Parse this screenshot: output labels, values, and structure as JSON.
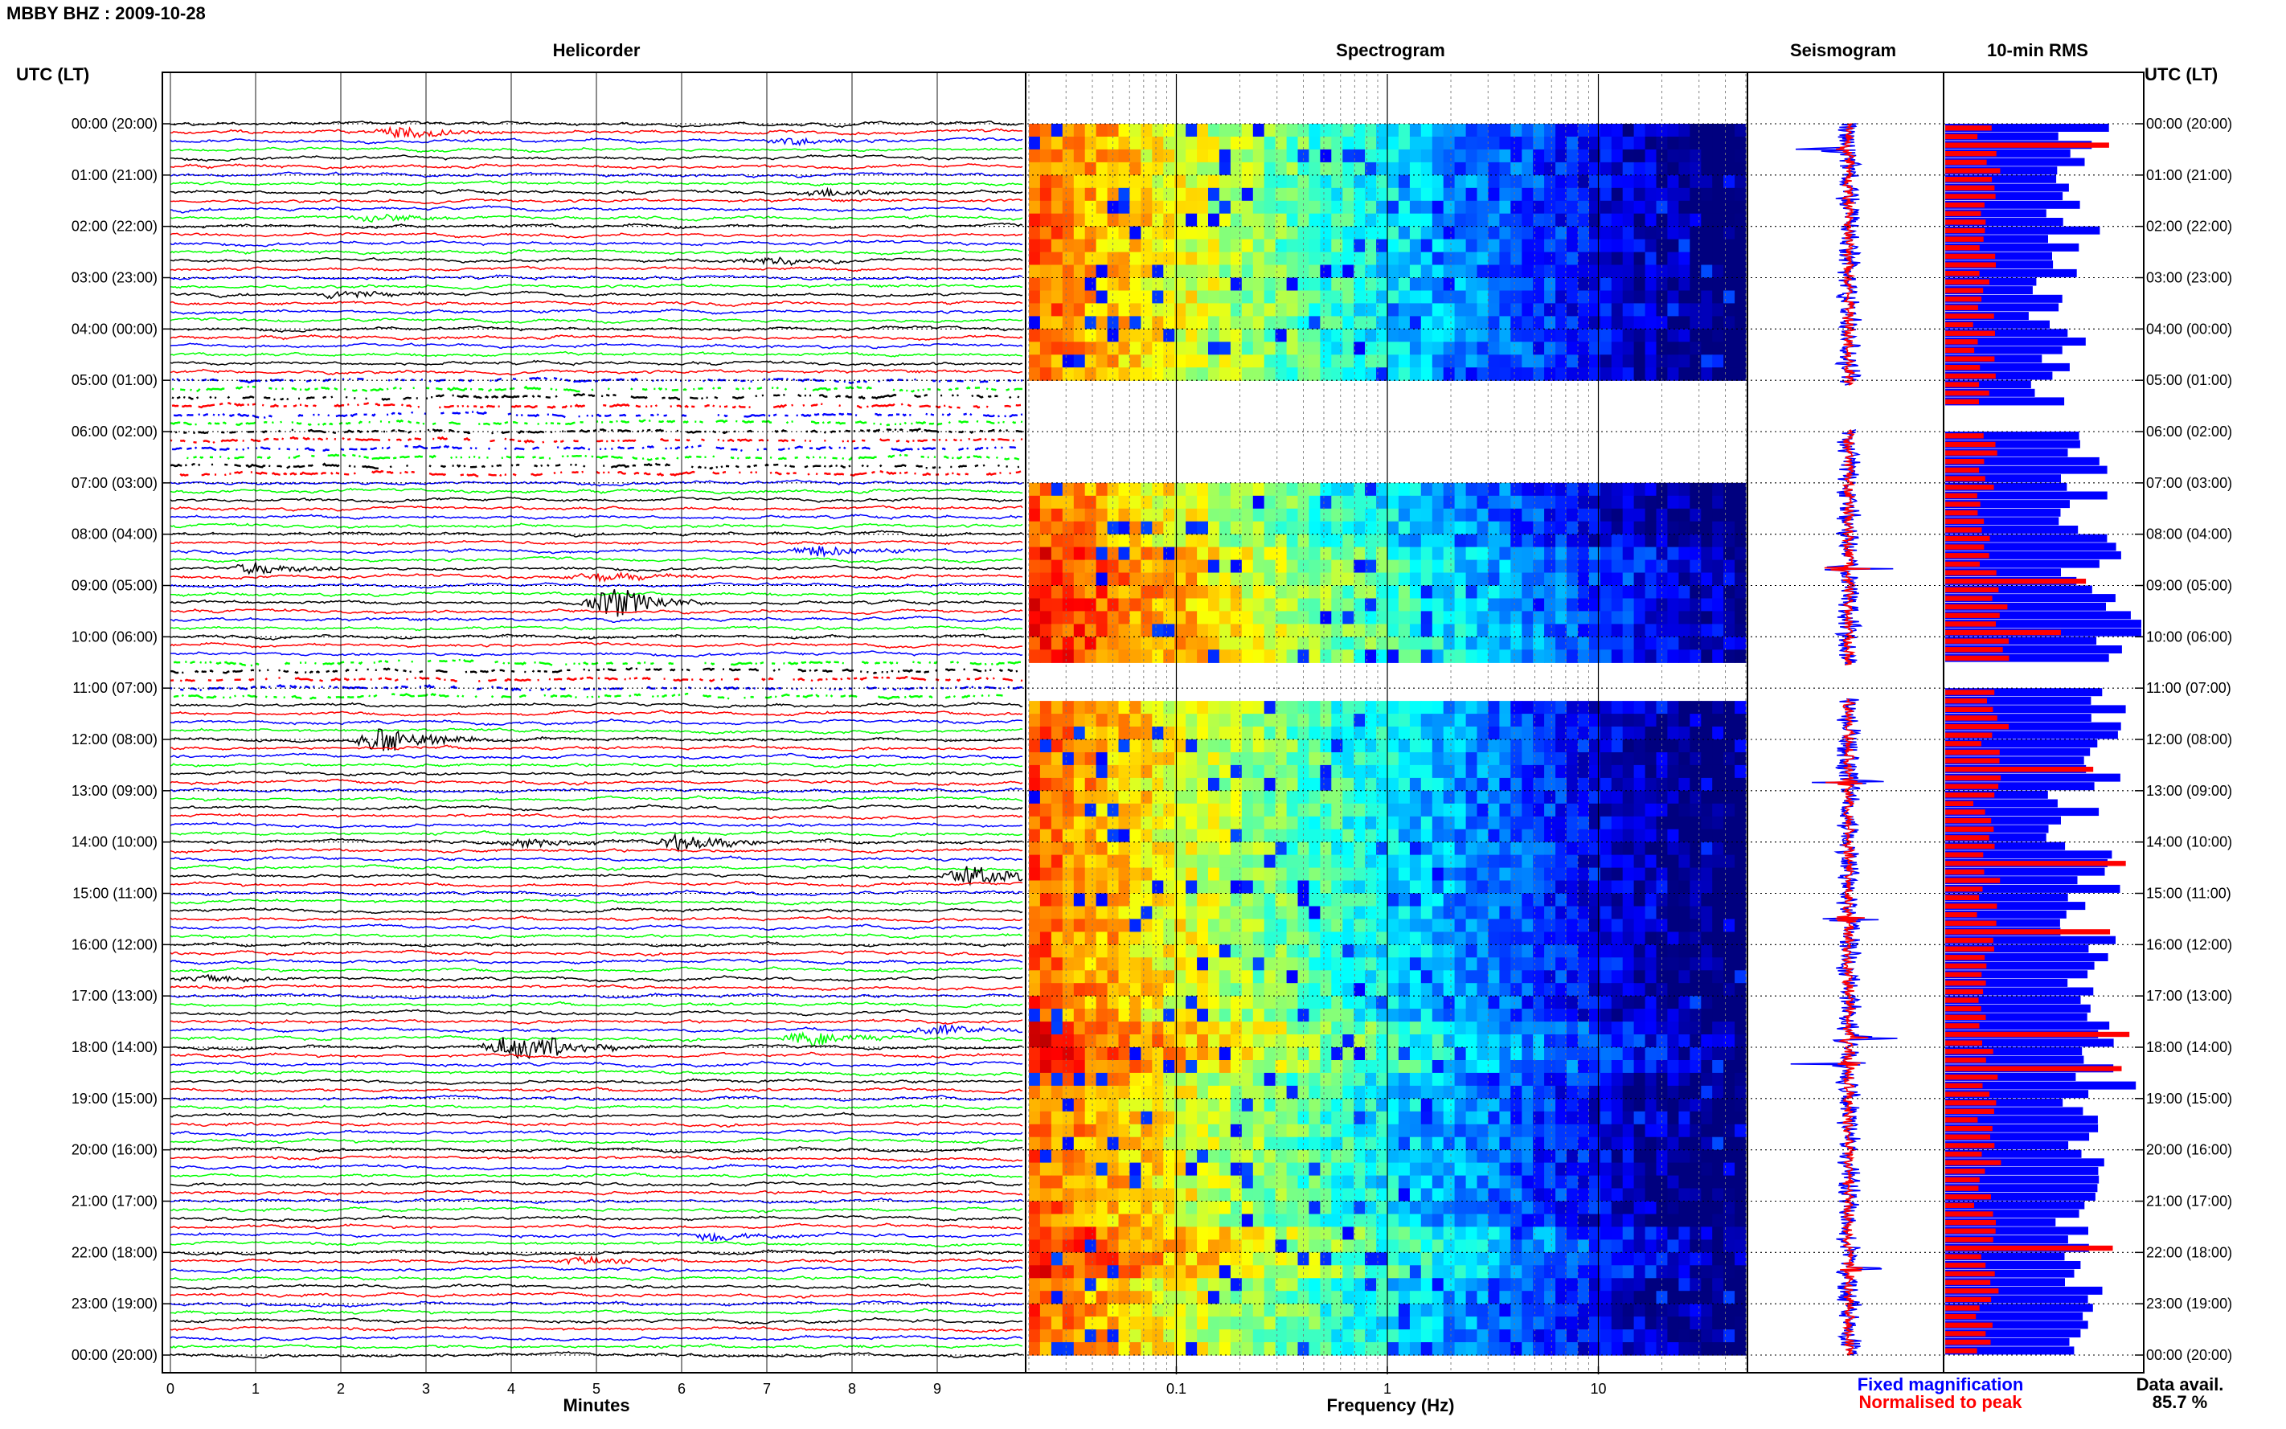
{
  "figure": {
    "title": "MBBY BHZ : 2009-10-28",
    "left_axis_header": "UTC (LT)",
    "right_axis_header": "UTC (LT)",
    "panels": {
      "helicorder": "Helicorder",
      "spectrogram": "Spectrogram",
      "seismogram": "Seismogram",
      "rms": "10-min RMS"
    },
    "legend": {
      "fixed": "Fixed magnification",
      "normalised": "Normalised to peak",
      "fixed_color": "#0000ff",
      "normalised_color": "#ff0000"
    },
    "data_availability_label": "Data avail.",
    "data_availability_value": "85.7 %",
    "colors": {
      "trace_cycle": [
        "#000000",
        "#ff0000",
        "#0000ff",
        "#00ff00"
      ],
      "spectrogram_colormap": "jet",
      "rms_fixed": "#0000ff",
      "rms_normalised": "#ff0000"
    }
  },
  "chart_data": [
    {
      "type": "line",
      "panel": "Helicorder",
      "xlabel": "Minutes",
      "x_ticks": [
        "0",
        "1",
        "2",
        "3",
        "4",
        "5",
        "6",
        "7",
        "8",
        "9"
      ],
      "xlim": [
        0,
        10
      ],
      "y_tick_labels": [
        "00:00 (20:00)",
        "01:00 (21:00)",
        "02:00 (22:00)",
        "03:00 (23:00)",
        "04:00 (00:00)",
        "05:00 (01:00)",
        "06:00 (02:00)",
        "07:00 (03:00)",
        "08:00 (04:00)",
        "09:00 (05:00)",
        "10:00 (06:00)",
        "11:00 (07:00)",
        "12:00 (08:00)",
        "13:00 (09:00)",
        "14:00 (10:00)",
        "15:00 (11:00)",
        "16:00 (12:00)",
        "17:00 (13:00)",
        "18:00 (14:00)",
        "19:00 (15:00)",
        "20:00 (16:00)",
        "21:00 (17:00)",
        "22:00 (18:00)",
        "23:00 (19:00)",
        "00:00 (20:00)"
      ],
      "lines": 144,
      "minutes_per_line": 10,
      "gaps_hours": [
        [
          5.0,
          6.0
        ],
        [
          6.0,
          7.0
        ],
        [
          10.5,
          11.3
        ]
      ],
      "events": [
        {
          "utc": "00:10",
          "minute": 2.7,
          "color": "green",
          "amp": 14
        },
        {
          "utc": "00:20",
          "minute": 7.3,
          "color": "green",
          "amp": 8
        },
        {
          "utc": "01:20",
          "minute": 7.7,
          "color": "blue",
          "amp": 8
        },
        {
          "utc": "01:50",
          "minute": 2.4,
          "color": "black",
          "amp": 9
        },
        {
          "utc": "02:40",
          "minute": 7.0,
          "color": "black",
          "amp": 9
        },
        {
          "utc": "03:20",
          "minute": 2.0,
          "color": "black",
          "amp": 9
        },
        {
          "utc": "08:20",
          "minute": 7.6,
          "color": "green",
          "amp": 14
        },
        {
          "utc": "08:40",
          "minute": 1.0,
          "color": "black",
          "amp": 14
        },
        {
          "utc": "08:50",
          "minute": 5.0,
          "color": "red",
          "amp": 10
        },
        {
          "utc": "09:20",
          "minute": 5.2,
          "color": "blue",
          "amp": 40
        },
        {
          "utc": "12:00",
          "minute": 2.5,
          "color": "blue",
          "amp": 36
        },
        {
          "utc": "14:00",
          "minute": 6.0,
          "color": "blue",
          "amp": 24
        },
        {
          "utc": "14:00",
          "minute": 4.2,
          "color": "black",
          "amp": 10
        },
        {
          "utc": "14:40",
          "minute": 9.4,
          "color": "black",
          "amp": 26
        },
        {
          "utc": "16:40",
          "minute": 0.4,
          "color": "black",
          "amp": 8
        },
        {
          "utc": "17:40",
          "minute": 9.0,
          "color": "black",
          "amp": 12
        },
        {
          "utc": "17:50",
          "minute": 7.5,
          "color": "green",
          "amp": 18
        },
        {
          "utc": "18:00",
          "minute": 4.0,
          "color": "blue",
          "amp": 30
        },
        {
          "utc": "18:00",
          "minute": 4.5,
          "color": "red",
          "amp": 16
        },
        {
          "utc": "21:40",
          "minute": 6.3,
          "color": "blue",
          "amp": 10
        },
        {
          "utc": "22:10",
          "minute": 4.8,
          "color": "blue",
          "amp": 10
        }
      ]
    },
    {
      "type": "heatmap",
      "panel": "Spectrogram",
      "xlabel": "Frequency (Hz)",
      "x_scale": "log",
      "xlim": [
        0.02,
        50
      ],
      "x_ticks": [
        "0.1",
        "1",
        "10"
      ],
      "y_axis": "UTC hour, 00:00 to 24:00",
      "colormap": "jet (red = low-frequency high power, dark blue = high-frequency low power)"
    },
    {
      "type": "line",
      "panel": "Seismogram",
      "series": [
        {
          "name": "Fixed magnification",
          "color": "#0000ff"
        },
        {
          "name": "Normalised to peak",
          "color": "#ff0000"
        }
      ],
      "y_axis": "UTC hour, 00:00 to 24:00",
      "spikes_utc": [
        "00:30",
        "08:40",
        "12:50",
        "15:30",
        "17:50",
        "18:20",
        "22:20"
      ]
    },
    {
      "type": "bar",
      "panel": "10-min RMS",
      "orientation": "horizontal",
      "series": [
        {
          "name": "Fixed magnification",
          "color": "#0000ff"
        },
        {
          "name": "Normalised to peak",
          "color": "#ff0000"
        }
      ],
      "bin_minutes": 10,
      "gaps_hours": [
        [
          5.5,
          6.0
        ],
        [
          10.4,
          11.0
        ]
      ],
      "rms_fixed_fraction_by_hour": [
        0.7,
        0.62,
        0.68,
        0.55,
        0.6,
        0.55,
        0.7,
        0.72,
        0.78,
        0.95,
        0.92,
        0.8,
        0.82,
        0.68,
        0.78,
        0.74,
        0.7,
        0.75,
        0.85,
        0.7,
        0.72,
        0.68,
        0.8,
        0.65
      ],
      "rms_normalised_fraction_by_hour": [
        0.22,
        0.2,
        0.2,
        0.2,
        0.2,
        0.22,
        0.22,
        0.22,
        0.25,
        0.28,
        0.3,
        0.25,
        0.22,
        0.2,
        0.22,
        0.22,
        0.2,
        0.2,
        0.25,
        0.22,
        0.22,
        0.2,
        0.24,
        0.2
      ],
      "peaks_normalised_utc": [
        "00:20",
        "08:50",
        "09:50",
        "12:30",
        "14:20",
        "15:40",
        "17:40",
        "18:20",
        "21:50"
      ]
    }
  ]
}
